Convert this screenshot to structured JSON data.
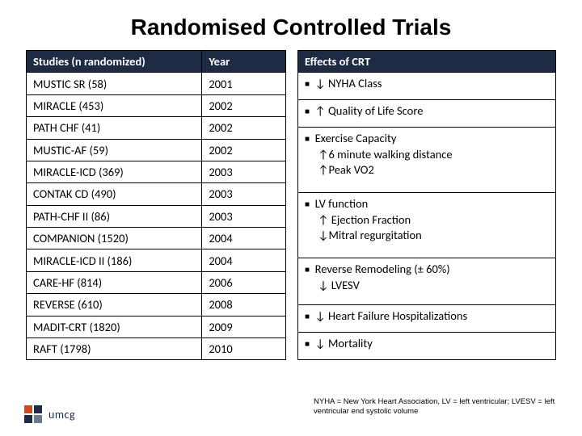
{
  "title": "Randomised Controlled Trials",
  "left_table": {
    "headers": {
      "study": "Studies (n randomized)",
      "year": "Year"
    },
    "rows": [
      {
        "study": "MUSTIC SR (58)",
        "year": "2001"
      },
      {
        "study": "MIRACLE (453)",
        "year": "2002"
      },
      {
        "study": "PATH CHF (41)",
        "year": "2002"
      },
      {
        "study": "MUSTIC-AF (59)",
        "year": "2002"
      },
      {
        "study": "MIRACLE-ICD (369)",
        "year": "2003"
      },
      {
        "study": "CONTAK CD (490)",
        "year": "2003"
      },
      {
        "study": "PATH-CHF II (86)",
        "year": "2003"
      },
      {
        "study": "COMPANION (1520)",
        "year": "2004"
      },
      {
        "study": "MIRACLE-ICD II (186)",
        "year": "2004"
      },
      {
        "study": "CARE-HF (814)",
        "year": "2006"
      },
      {
        "study": "REVERSE (610)",
        "year": "2008"
      },
      {
        "study": "MADIT-CRT (1820)",
        "year": "2009"
      },
      {
        "study": "RAFT (1798)",
        "year": "2010"
      }
    ]
  },
  "right_table": {
    "header": "Effects of CRT",
    "cells": [
      {
        "lines": [
          "▪  ↓ NYHA Class"
        ]
      },
      {
        "lines": [
          "▪  ↑ Quality of Life Score"
        ]
      },
      {
        "lines": [
          "▪  Exercise Capacity",
          "     ↑6 minute walking distance",
          "     ↑Peak VO2"
        ]
      },
      {
        "lines": [
          "▪  LV function",
          "     ↑ Ejection Fraction",
          "     ↓Mitral regurgitation"
        ]
      },
      {
        "lines": [
          "▪  Reverse Remodeling (± 60%)",
          "     ↓ LVESV"
        ]
      },
      {
        "lines": [
          "▪  ↓ Heart Failure Hospitalizations"
        ]
      },
      {
        "lines": [
          "▪  ↓ Mortality"
        ]
      }
    ]
  },
  "footnote": "NYHA = New York Heart Association, LV = left ventricular; LVESV = left ventricular end systolic volume",
  "logo_text": "umcg",
  "colors": {
    "header_bg": "#1f2a44",
    "header_text": "#ffffff",
    "border": "#000000",
    "title": "#000000",
    "logo_accent": "#c84b2a"
  }
}
